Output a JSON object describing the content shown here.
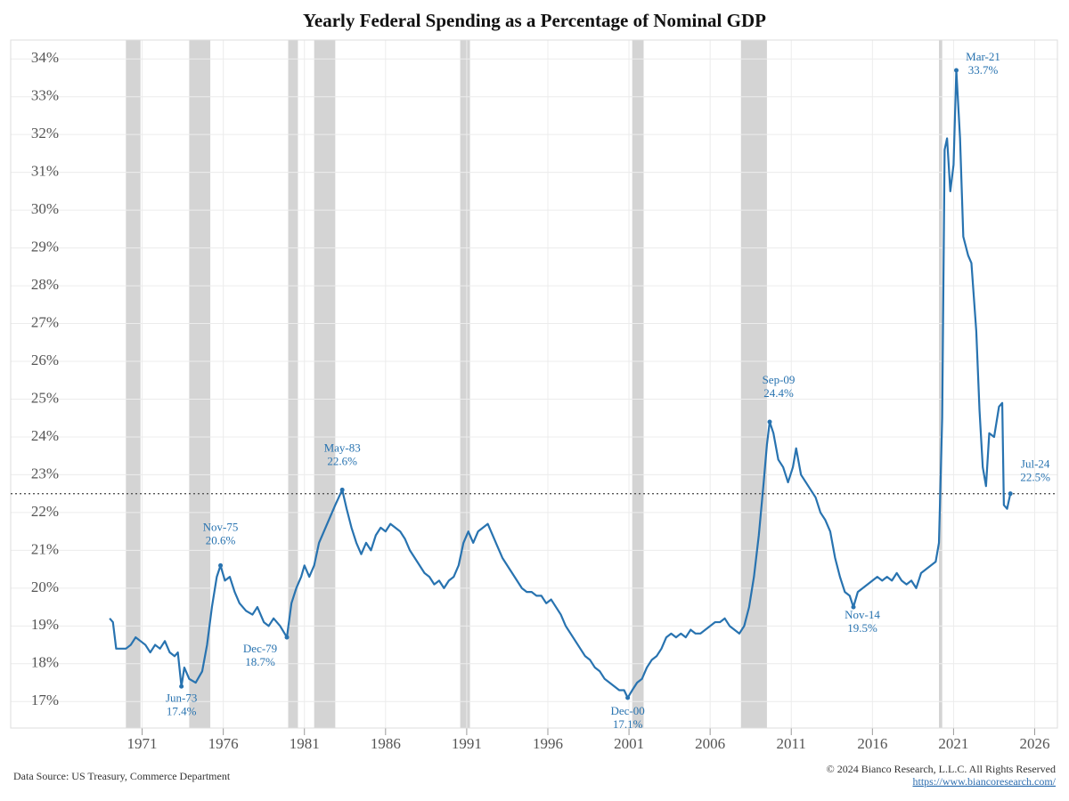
{
  "chart_data": {
    "type": "line",
    "title": "Yearly Federal Spending as a Percentage of Nominal GDP",
    "source": "Data Source: US Treasury, Commerce Department",
    "copyright": "© 2024 Bianco Research, L.L.C. All Rights Reserved",
    "url": "https://www.biancoresearch.com/",
    "xlim": [
      1962.9,
      2027.4
    ],
    "xticks": [
      1971,
      1976,
      1981,
      1986,
      1991,
      1996,
      2001,
      2006,
      2011,
      2016,
      2021,
      2026
    ],
    "ylim": [
      16.3,
      34.5
    ],
    "yticks": [
      {
        "value": 17,
        "label": "17%"
      },
      {
        "value": 18,
        "label": "18%"
      },
      {
        "value": 19,
        "label": "19%"
      },
      {
        "value": 20,
        "label": "20%"
      },
      {
        "value": 21,
        "label": "21%"
      },
      {
        "value": 22,
        "label": "22%"
      },
      {
        "value": 23,
        "label": "23%"
      },
      {
        "value": 24,
        "label": "24%"
      },
      {
        "value": 25,
        "label": "25%"
      },
      {
        "value": 26,
        "label": "26%"
      },
      {
        "value": 27,
        "label": "27%"
      },
      {
        "value": 28,
        "label": "28%"
      },
      {
        "value": 29,
        "label": "29%"
      },
      {
        "value": 30,
        "label": "30%"
      },
      {
        "value": 31,
        "label": "31%"
      },
      {
        "value": 32,
        "label": "32%"
      },
      {
        "value": 33,
        "label": "33%"
      },
      {
        "value": 34,
        "label": "34%"
      }
    ],
    "grid": true,
    "recessions": [
      [
        1970.0,
        1970.9
      ],
      [
        1973.9,
        1975.2
      ],
      [
        1980.0,
        1980.6
      ],
      [
        1981.6,
        1982.9
      ],
      [
        1990.6,
        1991.2
      ],
      [
        2001.2,
        2001.9
      ],
      [
        2007.9,
        2009.5
      ],
      [
        2020.1,
        2020.3
      ]
    ],
    "reference_line": 22.5,
    "series": [
      {
        "color": "#2873b0",
        "x": [
          1969.0,
          1969.2,
          1969.4,
          1969.7,
          1970.0,
          1970.3,
          1970.6,
          1970.9,
          1971.2,
          1971.5,
          1971.8,
          1972.1,
          1972.4,
          1972.7,
          1973.0,
          1973.2,
          1973.42,
          1973.6,
          1973.9,
          1974.3,
          1974.7,
          1975.0,
          1975.3,
          1975.6,
          1975.83,
          1976.1,
          1976.4,
          1976.7,
          1977.0,
          1977.4,
          1977.8,
          1978.1,
          1978.5,
          1978.8,
          1979.1,
          1979.5,
          1979.92,
          1980.2,
          1980.5,
          1980.8,
          1981.0,
          1981.3,
          1981.6,
          1981.9,
          1982.2,
          1982.6,
          1982.9,
          1983.33,
          1983.6,
          1983.9,
          1984.2,
          1984.5,
          1984.8,
          1985.1,
          1985.4,
          1985.7,
          1986.0,
          1986.3,
          1986.6,
          1986.9,
          1987.2,
          1987.5,
          1987.8,
          1988.1,
          1988.4,
          1988.7,
          1989.0,
          1989.3,
          1989.6,
          1989.9,
          1990.2,
          1990.5,
          1990.8,
          1991.1,
          1991.4,
          1991.7,
          1992.0,
          1992.3,
          1992.6,
          1992.9,
          1993.2,
          1993.5,
          1993.8,
          1994.1,
          1994.4,
          1994.7,
          1995.0,
          1995.3,
          1995.6,
          1995.9,
          1996.2,
          1996.5,
          1996.8,
          1997.1,
          1997.4,
          1997.7,
          1998.0,
          1998.3,
          1998.6,
          1998.9,
          1999.2,
          1999.5,
          1999.8,
          2000.1,
          2000.4,
          2000.7,
          2000.92,
          2001.2,
          2001.5,
          2001.8,
          2002.1,
          2002.4,
          2002.7,
          2003.0,
          2003.3,
          2003.6,
          2003.9,
          2004.2,
          2004.5,
          2004.8,
          2005.1,
          2005.4,
          2005.7,
          2006.0,
          2006.3,
          2006.6,
          2006.9,
          2007.2,
          2007.5,
          2007.8,
          2008.1,
          2008.4,
          2008.7,
          2009.0,
          2009.3,
          2009.5,
          2009.67,
          2009.9,
          2010.2,
          2010.5,
          2010.8,
          2011.1,
          2011.3,
          2011.6,
          2011.9,
          2012.2,
          2012.5,
          2012.8,
          2013.1,
          2013.4,
          2013.7,
          2014.0,
          2014.3,
          2014.6,
          2014.83,
          2015.1,
          2015.4,
          2015.7,
          2016.0,
          2016.3,
          2016.6,
          2016.9,
          2017.2,
          2017.5,
          2017.8,
          2018.1,
          2018.4,
          2018.7,
          2019.0,
          2019.3,
          2019.6,
          2019.9,
          2020.1,
          2020.3,
          2020.45,
          2020.6,
          2020.8,
          2021.0,
          2021.17,
          2021.4,
          2021.6,
          2021.9,
          2022.1,
          2022.4,
          2022.6,
          2022.8,
          2023.0,
          2023.2,
          2023.5,
          2023.8,
          2024.0,
          2024.1,
          2024.3,
          2024.5
        ],
        "values": [
          19.2,
          19.1,
          18.4,
          18.4,
          18.4,
          18.5,
          18.7,
          18.6,
          18.5,
          18.3,
          18.5,
          18.4,
          18.6,
          18.3,
          18.2,
          18.3,
          17.4,
          17.9,
          17.6,
          17.5,
          17.8,
          18.5,
          19.5,
          20.3,
          20.6,
          20.2,
          20.3,
          19.9,
          19.6,
          19.4,
          19.3,
          19.5,
          19.1,
          19.0,
          19.2,
          19.0,
          18.7,
          19.6,
          20.0,
          20.3,
          20.6,
          20.3,
          20.6,
          21.2,
          21.5,
          21.9,
          22.2,
          22.6,
          22.1,
          21.6,
          21.2,
          20.9,
          21.2,
          21.0,
          21.4,
          21.6,
          21.5,
          21.7,
          21.6,
          21.5,
          21.3,
          21.0,
          20.8,
          20.6,
          20.4,
          20.3,
          20.1,
          20.2,
          20.0,
          20.2,
          20.3,
          20.6,
          21.2,
          21.5,
          21.2,
          21.5,
          21.6,
          21.7,
          21.4,
          21.1,
          20.8,
          20.6,
          20.4,
          20.2,
          20.0,
          19.9,
          19.9,
          19.8,
          19.8,
          19.6,
          19.7,
          19.5,
          19.3,
          19.0,
          18.8,
          18.6,
          18.4,
          18.2,
          18.1,
          17.9,
          17.8,
          17.6,
          17.5,
          17.4,
          17.3,
          17.3,
          17.1,
          17.3,
          17.5,
          17.6,
          17.9,
          18.1,
          18.2,
          18.4,
          18.7,
          18.8,
          18.7,
          18.8,
          18.7,
          18.9,
          18.8,
          18.8,
          18.9,
          19.0,
          19.1,
          19.1,
          19.2,
          19.0,
          18.9,
          18.8,
          19.0,
          19.5,
          20.3,
          21.4,
          22.8,
          23.8,
          24.4,
          24.1,
          23.4,
          23.2,
          22.8,
          23.2,
          23.7,
          23.0,
          22.8,
          22.6,
          22.4,
          22.0,
          21.8,
          21.5,
          20.8,
          20.3,
          19.9,
          19.8,
          19.5,
          19.9,
          20.0,
          20.1,
          20.2,
          20.3,
          20.2,
          20.3,
          20.2,
          20.4,
          20.2,
          20.1,
          20.2,
          20.0,
          20.4,
          20.5,
          20.6,
          20.7,
          21.2,
          24.5,
          31.6,
          31.9,
          30.5,
          31.2,
          33.7,
          31.9,
          29.3,
          28.8,
          28.6,
          26.8,
          24.7,
          23.2,
          22.7,
          24.1,
          24.0,
          24.8,
          24.9,
          22.2,
          22.1,
          22.5
        ]
      }
    ],
    "annotations": [
      {
        "x": 1973.42,
        "label": "Jun-73",
        "value": 17.4,
        "value_label": "17.4%"
      },
      {
        "x": 1975.83,
        "label": "Nov-75",
        "value": 20.6,
        "value_label": "20.6%"
      },
      {
        "x": 1979.92,
        "label": "Dec-79",
        "value": 18.7,
        "value_label": "18.7%"
      },
      {
        "x": 1983.33,
        "label": "May-83",
        "value": 22.6,
        "value_label": "22.6%"
      },
      {
        "x": 2000.92,
        "label": "Dec-00",
        "value": 17.1,
        "value_label": "17.1%"
      },
      {
        "x": 2009.67,
        "label": "Sep-09",
        "value": 24.4,
        "value_label": "24.4%"
      },
      {
        "x": 2014.83,
        "label": "Nov-14",
        "value": 19.5,
        "value_label": "19.5%"
      },
      {
        "x": 2021.17,
        "label": "Mar-21",
        "value": 33.7,
        "value_label": "33.7%"
      },
      {
        "x": 2024.5,
        "label": "Jul-24",
        "value": 22.5,
        "value_label": "22.5%"
      }
    ]
  }
}
